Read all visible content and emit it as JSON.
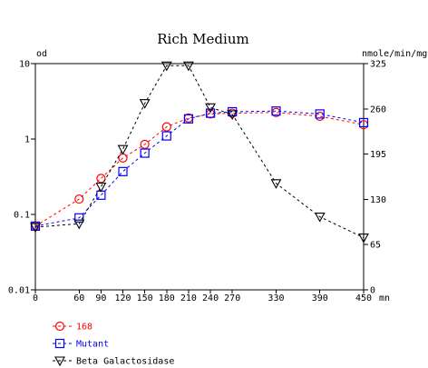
{
  "chart_data": {
    "type": "line",
    "title": "Rich Medium",
    "left_axis": {
      "label": "od",
      "scale": "log",
      "range": [
        0.01,
        10
      ],
      "ticks": [
        0.01,
        0.1,
        1,
        10
      ],
      "tick_labels": [
        "0.01",
        "0.1",
        "1",
        "10"
      ]
    },
    "right_axis": {
      "label": "nmole/min/mg",
      "scale": "linear",
      "range": [
        0,
        325
      ],
      "ticks": [
        0,
        65,
        130,
        195,
        260,
        325
      ],
      "tick_labels": [
        "0",
        "65",
        "130",
        "195",
        "260",
        "325"
      ]
    },
    "x_axis": {
      "label": "mn",
      "range": [
        0,
        450
      ],
      "ticks": [
        0,
        60,
        90,
        120,
        150,
        180,
        210,
        240,
        270,
        330,
        390,
        450
      ],
      "tick_labels": [
        "0",
        "60",
        "90",
        "120",
        "150",
        "180",
        "210",
        "240",
        "270",
        "330",
        "390",
        "450"
      ]
    },
    "grid": false,
    "legend_position": "bottom-left",
    "series": [
      {
        "name": "168",
        "axis": "left",
        "color": "#ff0000",
        "marker": "circle",
        "x": [
          0,
          60,
          90,
          120,
          150,
          180,
          210,
          240,
          270,
          330,
          390,
          450
        ],
        "y": [
          0.07,
          0.16,
          0.3,
          0.56,
          0.85,
          1.45,
          1.9,
          2.15,
          2.2,
          2.25,
          2.0,
          1.55
        ]
      },
      {
        "name": "Mutant",
        "axis": "left",
        "color": "#0000ff",
        "marker": "square",
        "x": [
          0,
          60,
          90,
          120,
          150,
          180,
          210,
          240,
          270,
          330,
          390,
          450
        ],
        "y": [
          0.07,
          0.09,
          0.18,
          0.37,
          0.65,
          1.1,
          1.85,
          2.2,
          2.3,
          2.35,
          2.15,
          1.65
        ]
      },
      {
        "name": "Beta Galactosidase",
        "axis": "right",
        "color": "#000000",
        "marker": "triangle-down",
        "x": [
          0,
          60,
          90,
          120,
          150,
          180,
          210,
          240,
          270,
          330,
          390,
          450
        ],
        "y": [
          90,
          95,
          148,
          202,
          268,
          322,
          322,
          262,
          252,
          153,
          105,
          75
        ]
      }
    ]
  }
}
